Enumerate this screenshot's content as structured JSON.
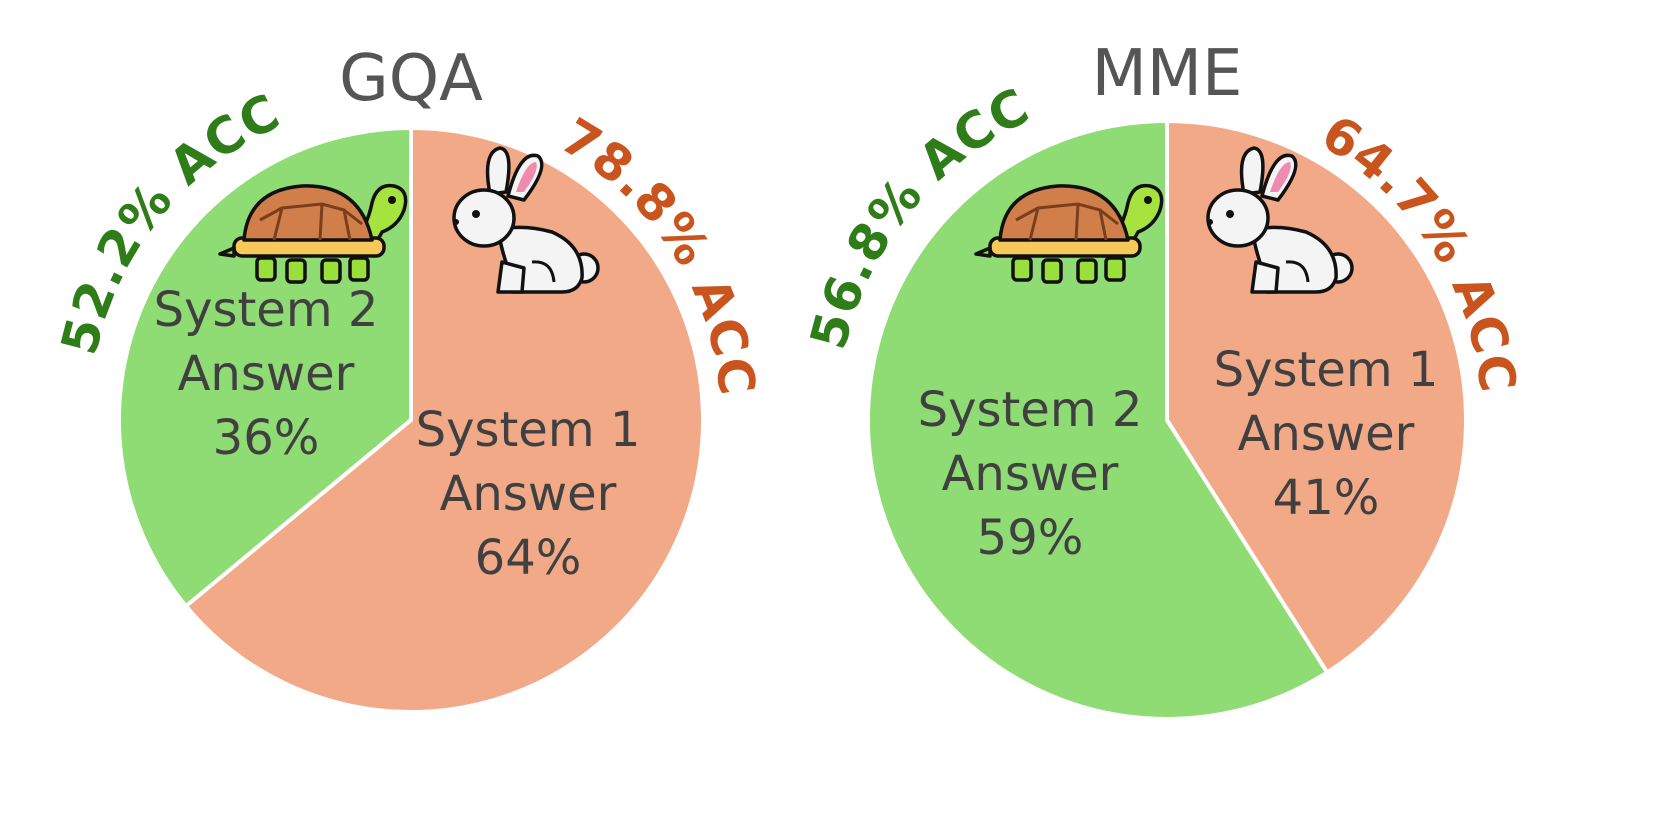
{
  "chart_data": [
    {
      "type": "pie",
      "title": "GQA",
      "categories": [
        "System 2 Answer",
        "System 1 Answer"
      ],
      "values": [
        36,
        64
      ],
      "slices": [
        {
          "label_lines": [
            "System 2",
            "Answer",
            "36%"
          ],
          "value": 36,
          "color": "#8fdb74",
          "accuracy_label": "52.2% ACC",
          "accuracy_color": "#2e7d19",
          "icon": "turtle-icon"
        },
        {
          "label_lines": [
            "System 1",
            "Answer",
            "64%"
          ],
          "value": 64,
          "color": "#f2a987",
          "accuracy_label": "78.8% ACC",
          "accuracy_color": "#c9541e",
          "icon": "rabbit-icon"
        }
      ]
    },
    {
      "type": "pie",
      "title": "MME",
      "categories": [
        "System 2 Answer",
        "System 1 Answer"
      ],
      "values": [
        59,
        41
      ],
      "slices": [
        {
          "label_lines": [
            "System 2",
            "Answer",
            "59%"
          ],
          "value": 59,
          "color": "#8fdb74",
          "accuracy_label": "56.8% ACC",
          "accuracy_color": "#2e7d19",
          "icon": "turtle-icon"
        },
        {
          "label_lines": [
            "System 1",
            "Answer",
            "41%"
          ],
          "value": 41,
          "color": "#f2a987",
          "accuracy_label": "64.7% ACC",
          "accuracy_color": "#c9541e",
          "icon": "rabbit-icon"
        }
      ]
    }
  ]
}
